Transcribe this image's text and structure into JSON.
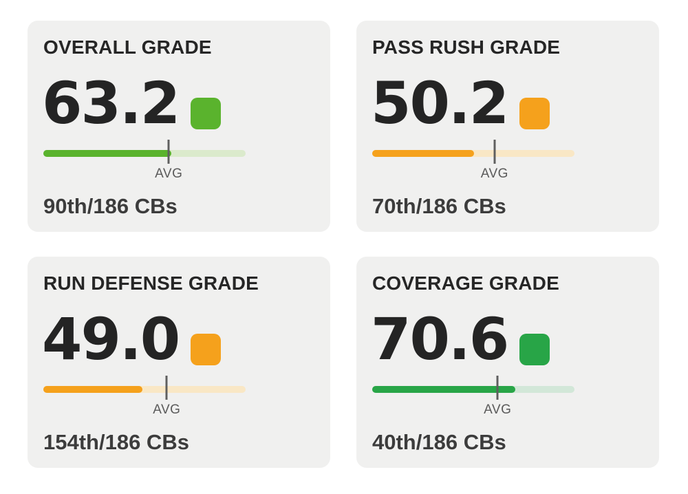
{
  "panel": {
    "description": "player grade stat cards",
    "position_scale": "0-100",
    "avg_label": "AVG"
  },
  "cards": [
    {
      "id": "overall",
      "title": "OVERALL GRADE",
      "value": "63.2",
      "rank": "90th/186 CBs",
      "avg_label": "AVG",
      "accent_color": "#5ab32d",
      "track_color": "#dbeacc",
      "fill_pct": 63.2,
      "avg_pct": 62
    },
    {
      "id": "pass-rush",
      "title": "PASS RUSH GRADE",
      "value": "50.2",
      "rank": "70th/186 CBs",
      "avg_label": "AVG",
      "accent_color": "#f5a11c",
      "track_color": "#f9e7c5",
      "fill_pct": 50.2,
      "avg_pct": 60.5
    },
    {
      "id": "run-defense",
      "title": "RUN DEFENSE GRADE",
      "value": "49.0",
      "rank": "154th/186 CBs",
      "avg_label": "AVG",
      "accent_color": "#f5a11c",
      "track_color": "#f9e7c5",
      "fill_pct": 49.0,
      "avg_pct": 61
    },
    {
      "id": "coverage",
      "title": "COVERAGE GRADE",
      "value": "70.6",
      "rank": "40th/186 CBs",
      "avg_label": "AVG",
      "accent_color": "#28a547",
      "track_color": "#d2e7d8",
      "fill_pct": 70.6,
      "avg_pct": 62
    }
  ]
}
